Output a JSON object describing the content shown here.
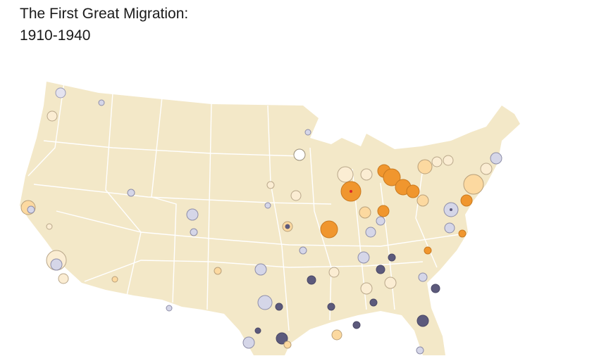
{
  "title": {
    "line1": "The First Great Migration:",
    "line2": "1910-1940"
  }
}
